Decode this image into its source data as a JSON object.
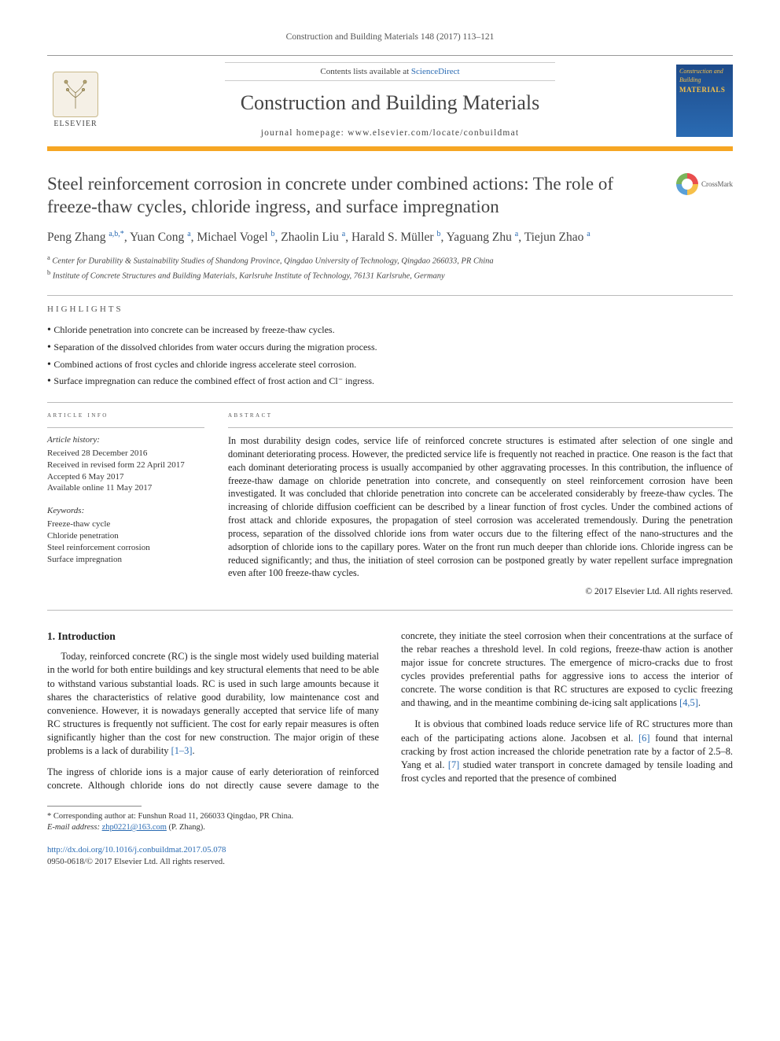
{
  "journal_ref": "Construction and Building Materials 148 (2017) 113–121",
  "masthead": {
    "elsevier_label": "ELSEVIER",
    "contents_prefix": "Contents lists available at ",
    "contents_link": "ScienceDirect",
    "journal_title": "Construction and Building Materials",
    "homepage_prefix": "journal homepage: ",
    "homepage_url": "www.elsevier.com/locate/conbuildmat",
    "cover_line1": "Construction and Building",
    "cover_line2": "MATERIALS"
  },
  "accent_color": "#f6a623",
  "crossmark_label": "CrossMark",
  "title": "Steel reinforcement corrosion in concrete under combined actions: The role of freeze-thaw cycles, chloride ingress, and surface impregnation",
  "authors_html": "Peng Zhang <sup>a,b,*</sup>, Yuan Cong <sup>a</sup>, Michael Vogel <sup>b</sup>, Zhaolin Liu <sup>a</sup>, Harald S. Müller <sup>b</sup>, Yaguang Zhu <sup>a</sup>, Tiejun Zhao <sup>a</sup>",
  "affiliations": [
    {
      "marker": "a",
      "text": "Center for Durability & Sustainability Studies of Shandong Province, Qingdao University of Technology, Qingdao 266033, PR China"
    },
    {
      "marker": "b",
      "text": "Institute of Concrete Structures and Building Materials, Karlsruhe Institute of Technology, 76131 Karlsruhe, Germany"
    }
  ],
  "highlights_label": "HIGHLIGHTS",
  "highlights": [
    "Chloride penetration into concrete can be increased by freeze-thaw cycles.",
    "Separation of the dissolved chlorides from water occurs during the migration process.",
    "Combined actions of frost cycles and chloride ingress accelerate steel corrosion.",
    "Surface impregnation can reduce the combined effect of frost action and Cl⁻ ingress."
  ],
  "article_info_label": "ARTICLE INFO",
  "abstract_label": "ABSTRACT",
  "history_heading": "Article history:",
  "history": [
    "Received 28 December 2016",
    "Received in revised form 22 April 2017",
    "Accepted 6 May 2017",
    "Available online 11 May 2017"
  ],
  "keywords_heading": "Keywords:",
  "keywords": [
    "Freeze-thaw cycle",
    "Chloride penetration",
    "Steel reinforcement corrosion",
    "Surface impregnation"
  ],
  "abstract": "In most durability design codes, service life of reinforced concrete structures is estimated after selection of one single and dominant deteriorating process. However, the predicted service life is frequently not reached in practice. One reason is the fact that each dominant deteriorating process is usually accompanied by other aggravating processes. In this contribution, the influence of freeze-thaw damage on chloride penetration into concrete, and consequently on steel reinforcement corrosion have been investigated. It was concluded that chloride penetration into concrete can be accelerated considerably by freeze-thaw cycles. The increasing of chloride diffusion coefficient can be described by a linear function of frost cycles. Under the combined actions of frost attack and chloride exposures, the propagation of steel corrosion was accelerated tremendously. During the penetration process, separation of the dissolved chloride ions from water occurs due to the filtering effect of the nano-structures and the adsorption of chloride ions to the capillary pores. Water on the front run much deeper than chloride ions. Chloride ingress can be reduced significantly; and thus, the initiation of steel corrosion can be postponed greatly by water repellent surface impregnation even after 100 freeze-thaw cycles.",
  "copyright": "© 2017 Elsevier Ltd. All rights reserved.",
  "intro_heading": "1. Introduction",
  "intro_p1": "Today, reinforced concrete (RC) is the single most widely used building material in the world for both entire buildings and key structural elements that need to be able to withstand various substantial loads. RC is used in such large amounts because it shares the characteristics of relative good durability, low maintenance cost and convenience. However, it is nowadays generally accepted that service life of many RC structures is frequently not sufficient. The cost for early repair measures is often significantly higher than the cost for new construction. The major origin of these problems is a lack of durability ",
  "intro_ref1": "[1–3]",
  "intro_p1_tail": ".",
  "intro_p2": "The ingress of chloride ions is a major cause of early deterioration of reinforced concrete. Although chloride ions do not directly cause severe damage to the concrete, they initiate the steel corrosion when their concentrations at the surface of the rebar reaches a threshold level. In cold regions, freeze-thaw action is another major issue for concrete structures. The emergence of micro-cracks due to frost cycles provides preferential paths for aggressive ions to access the interior of concrete. The worse condition is that RC structures are exposed to cyclic freezing and thawing, and in the meantime combining de-icing salt applications ",
  "intro_ref2": "[4,5]",
  "intro_p2_tail": ".",
  "intro_p3_a": "It is obvious that combined loads reduce service life of RC structures more than each of the participating actions alone. Jacobsen et al. ",
  "intro_ref3": "[6]",
  "intro_p3_b": " found that internal cracking by frost action increased the chloride penetration rate by a factor of 2.5–8. Yang et al. ",
  "intro_ref4": "[7]",
  "intro_p3_c": " studied water transport in concrete damaged by tensile loading and frost cycles and reported that the presence of combined",
  "footnote": {
    "corr_label": "* Corresponding author at: Funshun Road 11, 266033 Qingdao, PR China.",
    "email_label": "E-mail address:",
    "email": "zhp0221@163.com",
    "email_person": "(P. Zhang)."
  },
  "doi": "http://dx.doi.org/10.1016/j.conbuildmat.2017.05.078",
  "issn_line": "0950-0618/© 2017 Elsevier Ltd. All rights reserved."
}
